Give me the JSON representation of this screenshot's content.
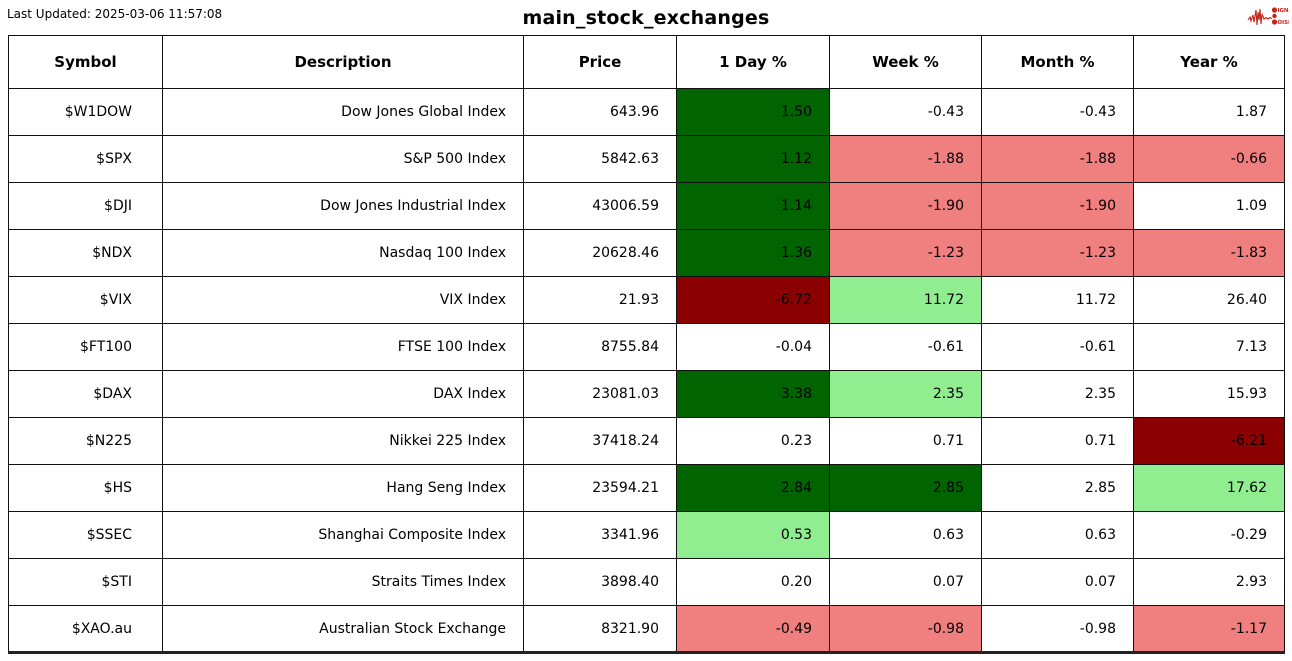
{
  "page": {
    "last_updated": "Last Updated: 2025-03-06 11:57:08",
    "title": "main_stock_exchanges"
  },
  "logo": {
    "line1": "SIGNAL",
    "line2": "NOISE",
    "color": "#c22418"
  },
  "colors": {
    "positive_strong": "#006400",
    "positive_mild": "#90EE90",
    "negative_mild": "#F08080",
    "negative_strong": "#8B0000",
    "neutral": "#FFFFFF"
  },
  "chart_data": {
    "type": "table",
    "title": "main_stock_exchanges",
    "columns": [
      "Symbol",
      "Description",
      "Price",
      "1 Day %",
      "Week %",
      "Month %",
      "Year %"
    ],
    "rows": [
      {
        "symbol": "$W1DOW",
        "description": "Dow Jones Global Index",
        "price": "643.96",
        "day": {
          "v": "1.50",
          "c": "positive_strong"
        },
        "week": {
          "v": "-0.43",
          "c": "neutral"
        },
        "month": {
          "v": "-0.43",
          "c": "neutral"
        },
        "year": {
          "v": "1.87",
          "c": "neutral"
        }
      },
      {
        "symbol": "$SPX",
        "description": "S&P 500 Index",
        "price": "5842.63",
        "day": {
          "v": "1.12",
          "c": "positive_strong"
        },
        "week": {
          "v": "-1.88",
          "c": "negative_mild"
        },
        "month": {
          "v": "-1.88",
          "c": "negative_mild"
        },
        "year": {
          "v": "-0.66",
          "c": "negative_mild"
        }
      },
      {
        "symbol": "$DJI",
        "description": "Dow Jones Industrial Index",
        "price": "43006.59",
        "day": {
          "v": "1.14",
          "c": "positive_strong"
        },
        "week": {
          "v": "-1.90",
          "c": "negative_mild"
        },
        "month": {
          "v": "-1.90",
          "c": "negative_mild"
        },
        "year": {
          "v": "1.09",
          "c": "neutral"
        }
      },
      {
        "symbol": "$NDX",
        "description": "Nasdaq 100 Index",
        "price": "20628.46",
        "day": {
          "v": "1.36",
          "c": "positive_strong"
        },
        "week": {
          "v": "-1.23",
          "c": "negative_mild"
        },
        "month": {
          "v": "-1.23",
          "c": "negative_mild"
        },
        "year": {
          "v": "-1.83",
          "c": "negative_mild"
        }
      },
      {
        "symbol": "$VIX",
        "description": "VIX Index",
        "price": "21.93",
        "day": {
          "v": "-6.72",
          "c": "negative_strong"
        },
        "week": {
          "v": "11.72",
          "c": "positive_mild"
        },
        "month": {
          "v": "11.72",
          "c": "neutral"
        },
        "year": {
          "v": "26.40",
          "c": "neutral"
        }
      },
      {
        "symbol": "$FT100",
        "description": "FTSE 100 Index",
        "price": "8755.84",
        "day": {
          "v": "-0.04",
          "c": "neutral"
        },
        "week": {
          "v": "-0.61",
          "c": "neutral"
        },
        "month": {
          "v": "-0.61",
          "c": "neutral"
        },
        "year": {
          "v": "7.13",
          "c": "neutral"
        }
      },
      {
        "symbol": "$DAX",
        "description": "DAX Index",
        "price": "23081.03",
        "day": {
          "v": "3.38",
          "c": "positive_strong"
        },
        "week": {
          "v": "2.35",
          "c": "positive_mild"
        },
        "month": {
          "v": "2.35",
          "c": "neutral"
        },
        "year": {
          "v": "15.93",
          "c": "neutral"
        }
      },
      {
        "symbol": "$N225",
        "description": "Nikkei 225 Index",
        "price": "37418.24",
        "day": {
          "v": "0.23",
          "c": "neutral"
        },
        "week": {
          "v": "0.71",
          "c": "neutral"
        },
        "month": {
          "v": "0.71",
          "c": "neutral"
        },
        "year": {
          "v": "-6.21",
          "c": "negative_strong"
        }
      },
      {
        "symbol": "$HS",
        "description": "Hang Seng Index",
        "price": "23594.21",
        "day": {
          "v": "2.84",
          "c": "positive_strong"
        },
        "week": {
          "v": "2.85",
          "c": "positive_strong"
        },
        "month": {
          "v": "2.85",
          "c": "neutral"
        },
        "year": {
          "v": "17.62",
          "c": "positive_mild"
        }
      },
      {
        "symbol": "$SSEC",
        "description": "Shanghai Composite Index",
        "price": "3341.96",
        "day": {
          "v": "0.53",
          "c": "positive_mild"
        },
        "week": {
          "v": "0.63",
          "c": "neutral"
        },
        "month": {
          "v": "0.63",
          "c": "neutral"
        },
        "year": {
          "v": "-0.29",
          "c": "neutral"
        }
      },
      {
        "symbol": "$STI",
        "description": "Straits Times Index",
        "price": "3898.40",
        "day": {
          "v": "0.20",
          "c": "neutral"
        },
        "week": {
          "v": "0.07",
          "c": "neutral"
        },
        "month": {
          "v": "0.07",
          "c": "neutral"
        },
        "year": {
          "v": "2.93",
          "c": "neutral"
        }
      },
      {
        "symbol": "$XAO.au",
        "description": "Australian Stock Exchange",
        "price": "8321.90",
        "day": {
          "v": "-0.49",
          "c": "negative_mild"
        },
        "week": {
          "v": "-0.98",
          "c": "negative_mild"
        },
        "month": {
          "v": "-0.98",
          "c": "neutral"
        },
        "year": {
          "v": "-1.17",
          "c": "negative_mild"
        }
      }
    ]
  }
}
